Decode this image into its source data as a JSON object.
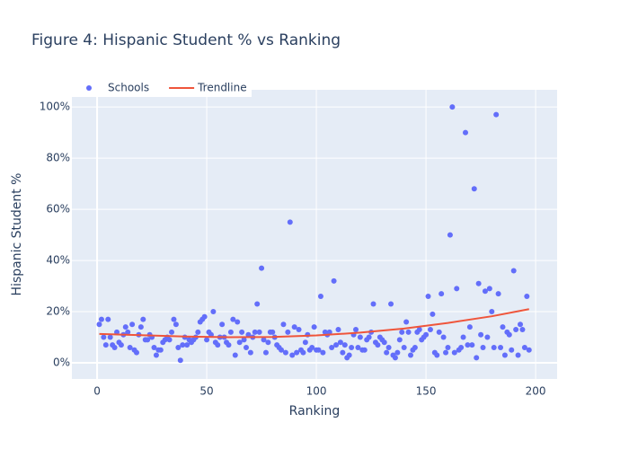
{
  "chart_data": {
    "type": "scatter",
    "title": "Figure 4: Hispanic Student % vs Ranking",
    "x_label": "Ranking",
    "y_label": "Hispanic Student %",
    "xlim": [
      -11.5,
      209.8
    ],
    "ylim": [
      -6.3,
      106.7
    ],
    "xticks": [
      0,
      50,
      100,
      150,
      200
    ],
    "yticks": [
      {
        "value": 0,
        "label": "0%"
      },
      {
        "value": 20,
        "label": "20%"
      },
      {
        "value": 40,
        "label": "40%"
      },
      {
        "value": 60,
        "label": "60%"
      },
      {
        "value": 80,
        "label": "80%"
      },
      {
        "value": 100,
        "label": "100%"
      }
    ],
    "grid": true,
    "legend": "top-left",
    "series": [
      {
        "name": "Schools",
        "mode": "markers",
        "color": "#636efa",
        "x": [
          1,
          2,
          3,
          4,
          5,
          6,
          7,
          8,
          9,
          10,
          11,
          12,
          13,
          14,
          15,
          16,
          17,
          18,
          19,
          20,
          21,
          22,
          23,
          24,
          25,
          26,
          27,
          28,
          29,
          30,
          31,
          32,
          33,
          34,
          35,
          36,
          37,
          38,
          39,
          40,
          41,
          42,
          43,
          44,
          45,
          46,
          47,
          48,
          49,
          50,
          51,
          52,
          53,
          54,
          55,
          56,
          57,
          58,
          59,
          60,
          61,
          62,
          63,
          64,
          65,
          66,
          67,
          68,
          69,
          70,
          71,
          72,
          73,
          74,
          75,
          76,
          77,
          78,
          79,
          80,
          81,
          82,
          83,
          84,
          85,
          86,
          87,
          88,
          89,
          90,
          91,
          92,
          93,
          94,
          95,
          96,
          97,
          98,
          99,
          100,
          101,
          102,
          103,
          104,
          105,
          106,
          107,
          108,
          109,
          110,
          111,
          112,
          113,
          114,
          115,
          116,
          117,
          118,
          119,
          120,
          121,
          122,
          123,
          124,
          125,
          126,
          127,
          128,
          129,
          130,
          131,
          132,
          133,
          134,
          135,
          136,
          137,
          138,
          139,
          140,
          141,
          142,
          143,
          144,
          145,
          146,
          147,
          148,
          149,
          150,
          151,
          152,
          153,
          154,
          155,
          156,
          157,
          158,
          159,
          160,
          161,
          162,
          163,
          164,
          165,
          166,
          167,
          168,
          169,
          170,
          171,
          172,
          173,
          174,
          175,
          176,
          177,
          178,
          179,
          180,
          181,
          182,
          183,
          184,
          185,
          186,
          187,
          188,
          189,
          190,
          191,
          192,
          193,
          194,
          195,
          196,
          197
        ],
        "values": [
          15,
          17,
          10,
          7,
          17,
          10,
          7,
          6,
          12,
          8,
          7,
          11,
          14,
          12,
          6,
          15,
          5,
          4,
          11,
          14,
          17,
          9,
          9,
          11,
          10,
          6,
          3,
          5,
          5,
          8,
          9,
          10,
          9,
          12,
          17,
          15,
          6,
          1,
          7,
          10,
          7,
          9,
          8,
          9,
          10,
          12,
          16,
          17,
          18,
          9,
          12,
          11,
          20,
          8,
          7,
          10,
          15,
          10,
          8,
          7,
          12,
          17,
          3,
          16,
          8,
          12,
          9,
          6,
          11,
          4,
          10,
          12,
          23,
          12,
          37,
          9,
          4,
          8,
          12,
          12,
          10,
          7,
          6,
          5,
          15,
          4,
          12,
          55,
          3,
          14,
          4,
          13,
          5,
          4,
          8,
          11,
          5,
          6,
          14,
          5,
          5,
          26,
          4,
          12,
          11,
          12,
          6,
          32,
          7,
          13,
          8,
          4,
          7,
          2,
          3,
          6,
          11,
          13,
          6,
          10,
          5,
          5,
          9,
          10,
          12,
          23,
          8,
          7,
          10,
          9,
          8,
          4,
          6,
          23,
          3,
          2,
          4,
          9,
          12,
          6,
          16,
          12,
          3,
          5,
          6,
          12,
          13,
          9,
          10,
          11,
          26,
          13,
          19,
          4,
          3,
          12,
          27,
          10,
          4,
          6,
          50,
          100,
          4,
          29,
          5,
          6,
          10,
          90,
          7,
          14,
          7,
          68,
          2,
          31,
          11,
          6,
          28,
          10,
          29,
          20,
          6,
          97,
          27,
          6,
          14,
          3,
          12,
          11,
          5,
          36,
          13,
          3,
          15,
          13,
          6,
          26,
          5
        ]
      },
      {
        "name": "Trendline",
        "mode": "lines",
        "color": "#ef553b",
        "x": [
          1,
          20,
          40,
          60,
          80,
          100,
          120,
          140,
          160,
          180,
          197
        ],
        "values": [
          11.3,
          10.8,
          10.3,
          10.0,
          10.1,
          10.7,
          11.8,
          13.4,
          15.6,
          18.2,
          21.0
        ]
      }
    ]
  }
}
